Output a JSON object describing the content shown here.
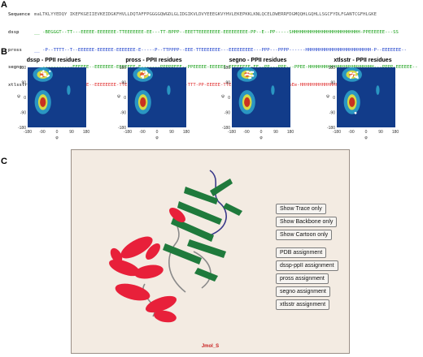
{
  "panel_a": {
    "letter": "A",
    "rows": [
      {
        "label": "Sequence",
        "text": "maLTKLYYEDQY IKEFKGEIIEVKEIDGKFHVLLDQTAFFPGGGGQWGDLGLIDGIKVLDVYEEEGKVYHVLEKEPKKLKNLQCELDWERRFDGMQQHLGQHLLSGCFYDLFGANTCGFHLGKE"
      },
      {
        "label": "dssp",
        "text": "__ -BEGGGT--TT---EEEEE-EEEEEEE-TTEEEEEEE-EE---TT-BPPP--EEETTEEEEEEEE-EEEEEEEEE-PP--E--PP-----SHHHHHHHHHHHHHHHHHHHHHHHHH-PPEEEEEE---SS"
      },
      {
        "label": "pross",
        "text": "__ -P--TTTT--T--EEEEEE-EEEEEE-EEEEEEE-E-----P--TTPPPP--EEE-TTEEEEEEE---EEEEEEEEE---PPP---PPPP------HHHHHHHHHHHHHHHHHHHHHHHH-P--EEEEEEE--"
      },
      {
        "label": "segno",
        "text": "__ -----------EEEEEE--EEEEEEE-EEEEEEE-E-------PPPPPEEE--PPEEEEE-EEEEEE-EEEEEEEE-EE--PP---PPP---PPEE-HHHHHHHHHHHHHHHHHHHHHHHH---PPPP-EEEEEE--"
      },
      {
        "label": "xtlsstr",
        "text": "__ --GGGg-TTT--EEEEE--EEEEEEEE-TTEEEEEEEE-EEEe--PPPPPEe-TTT-PP-EEEEE-TTEEEEEE-EEEEEEEE-PP---PpEe-HHHHHHHHHHHHHHHHHHHHHHHH-EPPp---SSS"
      }
    ]
  },
  "panel_b": {
    "letter": "B",
    "plots": [
      {
        "title": "dssp - PPII residues"
      },
      {
        "title": "pross - PPII residues"
      },
      {
        "title": "segno - PPII residues"
      },
      {
        "title": "xtlsstr - PPII residues"
      }
    ],
    "x_ticks": [
      "-180",
      "-90",
      "0",
      "90",
      "180"
    ],
    "y_ticks": [
      "180",
      "90",
      "0",
      "-90",
      "-180"
    ],
    "x_label": "φ",
    "y_label": "ψ"
  },
  "panel_c": {
    "letter": "C",
    "buttons": [
      "Show Trace only",
      "Show Backbone only",
      "Show Cartoon only",
      "PDB assignment",
      "dssp-ppII assignment",
      "pross assignment",
      "segno assignment",
      "xtlsstr assignment"
    ],
    "jmol_label": "Jmol_S"
  },
  "colors": {
    "helix": "#e8203a",
    "strand": "#1f7a3c",
    "coil": "#8a8a8a",
    "ppii": "#2244cc"
  }
}
